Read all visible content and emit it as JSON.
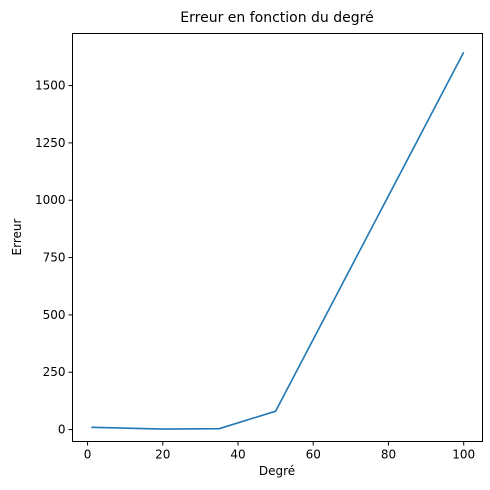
{
  "chart_data": {
    "type": "line",
    "title": "Erreur en fonction du degré",
    "xlabel": "Degré",
    "ylabel": "Erreur",
    "xlim": [
      -4,
      105
    ],
    "ylim": [
      -52,
      1727
    ],
    "xticks": [
      0,
      20,
      40,
      60,
      80,
      100
    ],
    "yticks": [
      0,
      250,
      500,
      750,
      1000,
      1250,
      1500
    ],
    "grid": false,
    "series": [
      {
        "color": "#1f77b4",
        "x": [
          1,
          20,
          35,
          50,
          100
        ],
        "y": [
          10,
          2,
          4,
          80,
          1645
        ]
      }
    ]
  }
}
